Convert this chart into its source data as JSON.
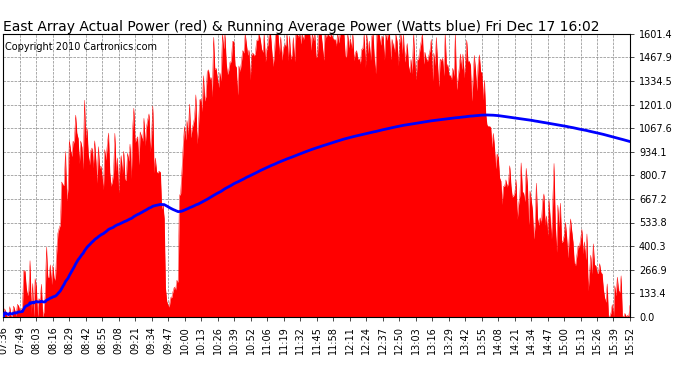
{
  "title": "East Array Actual Power (red) & Running Average Power (Watts blue) Fri Dec 17 16:02",
  "copyright": "Copyright 2010 Cartronics.com",
  "ylabel_right": [
    "1601.4",
    "1467.9",
    "1334.5",
    "1201.0",
    "1067.6",
    "934.1",
    "800.7",
    "667.2",
    "533.8",
    "400.3",
    "266.9",
    "133.4",
    "0.0"
  ],
  "ymax": 1601.4,
  "ymin": 0.0,
  "background_color": "#ffffff",
  "plot_bg_color": "#ffffff",
  "grid_color": "#888888",
  "bar_color": "#ff0000",
  "avg_color": "#0000ff",
  "x_labels": [
    "07:36",
    "07:49",
    "08:03",
    "08:16",
    "08:29",
    "08:42",
    "08:55",
    "09:08",
    "09:21",
    "09:34",
    "09:47",
    "10:00",
    "10:13",
    "10:26",
    "10:39",
    "10:52",
    "11:06",
    "11:19",
    "11:32",
    "11:45",
    "11:58",
    "12:11",
    "12:24",
    "12:37",
    "12:50",
    "13:03",
    "13:16",
    "13:29",
    "13:42",
    "13:55",
    "14:08",
    "14:21",
    "14:34",
    "14:47",
    "15:00",
    "15:13",
    "15:26",
    "15:39",
    "15:52"
  ],
  "title_fontsize": 10,
  "copyright_fontsize": 7,
  "tick_fontsize": 7
}
